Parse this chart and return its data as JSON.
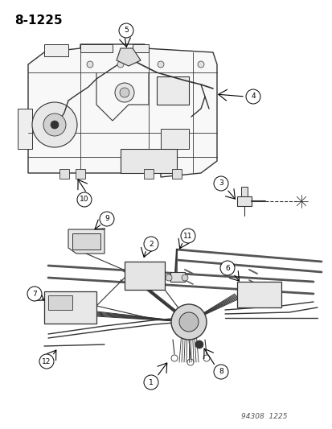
{
  "title": "8-1225",
  "footer": "94308  1225",
  "background_color": "#ffffff",
  "text_color": "#000000",
  "fig_width": 4.14,
  "fig_height": 5.33,
  "dpi": 100,
  "title_fontsize": 11,
  "title_fontweight": "bold",
  "footer_fontsize": 6.5,
  "line_color": "#333333",
  "gray": "#888888",
  "light_gray": "#cccccc"
}
